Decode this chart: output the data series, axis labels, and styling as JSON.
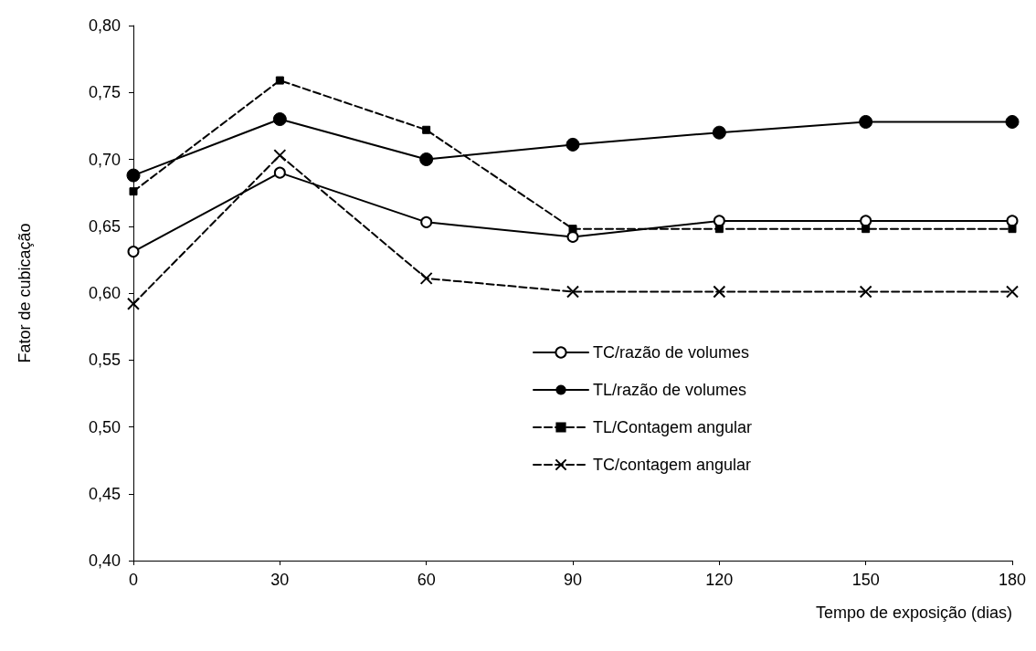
{
  "chart_data": {
    "type": "line",
    "xlabel": "Tempo de exposição (dias)",
    "ylabel": "Fator de cubicação",
    "x": [
      0,
      30,
      60,
      90,
      120,
      150,
      180
    ],
    "xlim": [
      0,
      180
    ],
    "xticks": [
      0,
      30,
      60,
      90,
      120,
      150,
      180
    ],
    "ylim": [
      0.4,
      0.8
    ],
    "yticks": [
      {
        "value": 0.4,
        "label": "0,40"
      },
      {
        "value": 0.45,
        "label": "0,45"
      },
      {
        "value": 0.5,
        "label": "0,50"
      },
      {
        "value": 0.55,
        "label": "0,55"
      },
      {
        "value": 0.6,
        "label": "0,60"
      },
      {
        "value": 0.65,
        "label": "0,65"
      },
      {
        "value": 0.7,
        "label": "0,70"
      },
      {
        "value": 0.75,
        "label": "0,75"
      },
      {
        "value": 0.8,
        "label": "0,80"
      }
    ],
    "grid": false,
    "legend": "right",
    "series": [
      {
        "name": "TC/razão de volumes",
        "color": "#000000",
        "marker": "circle",
        "line_style": "solid",
        "values": [
          0.631,
          0.69,
          0.653,
          0.642,
          0.654,
          0.654,
          0.654
        ]
      },
      {
        "name": "TL/razão de volumes",
        "color": "#000000",
        "marker": "dot",
        "line_style": "solid",
        "values": [
          0.688,
          0.73,
          0.7,
          0.711,
          0.72,
          0.728,
          0.728
        ]
      },
      {
        "name": "TL/Contagem angular",
        "color": "#000000",
        "marker": "square",
        "line_style": "dashed",
        "values": [
          0.676,
          0.759,
          0.722,
          0.648,
          0.648,
          0.648,
          0.648
        ]
      },
      {
        "name": "TC/contagem angular",
        "color": "#000000",
        "marker": "cross",
        "line_style": "dashed",
        "values": [
          0.592,
          0.703,
          0.611,
          0.601,
          0.601,
          0.601,
          0.601
        ]
      }
    ]
  }
}
